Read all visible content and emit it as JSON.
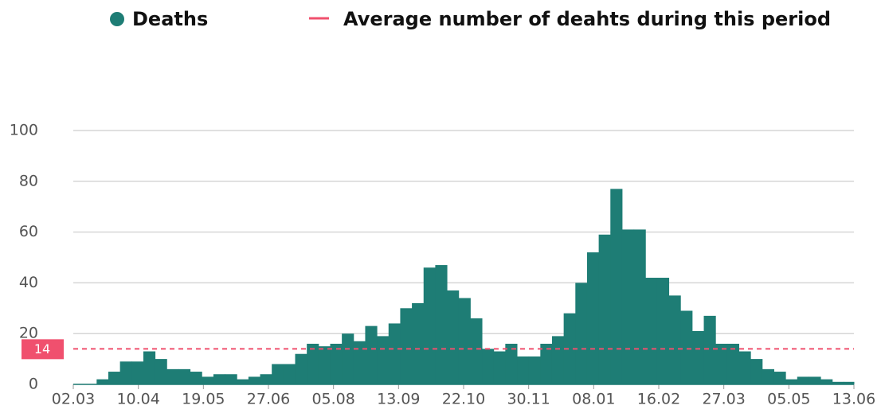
{
  "chart_data": {
    "type": "step-area",
    "series": [
      {
        "name": "Deaths",
        "color": "#1e7d75",
        "x": [
          0,
          7,
          14,
          21,
          28,
          35,
          42,
          49,
          56,
          63,
          70,
          77,
          84,
          91,
          98,
          105,
          112,
          119,
          126,
          133,
          140,
          147,
          154,
          161,
          168,
          175,
          182,
          189,
          196,
          203,
          210,
          217,
          224,
          231,
          238,
          245,
          252,
          259,
          266,
          273,
          280,
          287,
          294,
          301,
          308,
          315,
          322,
          329,
          336,
          343,
          350,
          357,
          364,
          371,
          378,
          385,
          392,
          399,
          406,
          413,
          420,
          427,
          434,
          441,
          448,
          455,
          462
        ],
        "values": [
          0,
          0,
          2,
          5,
          9,
          9,
          13,
          10,
          6,
          6,
          5,
          3,
          4,
          4,
          2,
          3,
          4,
          8,
          8,
          12,
          16,
          15,
          16,
          20,
          17,
          23,
          19,
          24,
          30,
          32,
          46,
          47,
          37,
          34,
          26,
          14,
          13,
          16,
          11,
          11,
          16,
          19,
          28,
          40,
          52,
          59,
          77,
          61,
          61,
          42,
          42,
          35,
          29,
          21,
          27,
          16,
          16,
          13,
          10,
          6,
          5,
          2,
          3,
          3,
          2,
          1,
          1
        ]
      }
    ],
    "average": {
      "name": "Average number of deahts during this period",
      "color": "#f0506e",
      "value": 14
    },
    "xlim": [
      0,
      468
    ],
    "xticks": [
      {
        "value": 0,
        "label": "02.03"
      },
      {
        "value": 39,
        "label": "10.04"
      },
      {
        "value": 78,
        "label": "19.05"
      },
      {
        "value": 117,
        "label": "27.06"
      },
      {
        "value": 156,
        "label": "05.08"
      },
      {
        "value": 195,
        "label": "13.09"
      },
      {
        "value": 234,
        "label": "22.10"
      },
      {
        "value": 273,
        "label": "30.11"
      },
      {
        "value": 312,
        "label": "08.01"
      },
      {
        "value": 351,
        "label": "16.02"
      },
      {
        "value": 390,
        "label": "27.03"
      },
      {
        "value": 429,
        "label": "05.05"
      },
      {
        "value": 468,
        "label": "13.06"
      }
    ],
    "ylim": [
      0,
      100
    ],
    "yticks": [
      0,
      20,
      40,
      60,
      80,
      100
    ],
    "grid": true
  }
}
